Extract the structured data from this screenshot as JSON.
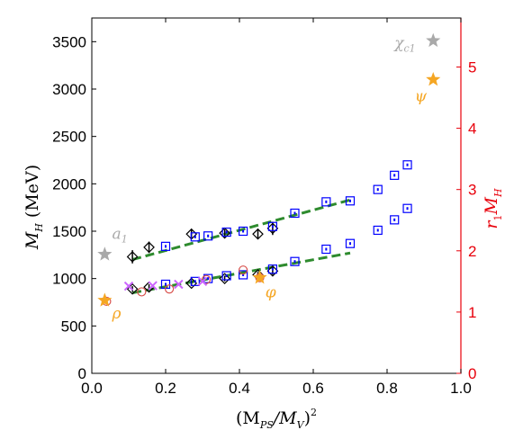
{
  "chart_data": {
    "type": "scatter",
    "x_axis": {
      "label_main": "(M",
      "label_sub1": "PS",
      "label_mid": "/M",
      "label_sub2": "V",
      "label_end": ")",
      "label_sup": "2",
      "range": [
        0,
        1.0
      ],
      "ticks": [
        0,
        0.2,
        0.4,
        0.6,
        0.8,
        1.0
      ],
      "tick_labels": [
        "0.0",
        "0.2",
        "0.4",
        "0.6",
        "0.8",
        "1.0"
      ]
    },
    "y_left": {
      "label_main": "M",
      "label_sub": "H",
      "label_unit": " (MeV)",
      "range": [
        0,
        3750
      ],
      "ticks": [
        0,
        500,
        1000,
        1500,
        2000,
        2500,
        3000,
        3500
      ],
      "tick_labels": [
        "0",
        "500",
        "1000",
        "1500",
        "2000",
        "2500",
        "3000",
        "3500"
      ],
      "color": "#000000"
    },
    "y_right": {
      "label_pre": "r",
      "label_sub1": "1",
      "label_mid": "M",
      "label_sub2": "H",
      "range": [
        0,
        5.8
      ],
      "ticks": [
        0,
        1,
        2,
        3,
        4,
        5
      ],
      "tick_labels": [
        "0",
        "1",
        "2",
        "3",
        "4",
        "5"
      ],
      "color": "#e8000b"
    },
    "grid": false,
    "series": [
      {
        "marker": "diamond",
        "color": "#000000",
        "points": [
          [
            0.11,
            1230
          ],
          [
            0.155,
            1330
          ],
          [
            0.27,
            1470
          ],
          [
            0.36,
            1480
          ],
          [
            0.45,
            1470
          ],
          [
            0.49,
            1530
          ],
          [
            0.11,
            890
          ],
          [
            0.155,
            910
          ],
          [
            0.27,
            950
          ],
          [
            0.36,
            1000
          ],
          [
            0.45,
            1040
          ],
          [
            0.49,
            1080
          ]
        ],
        "errors": [
          70,
          60,
          50,
          40,
          50,
          70,
          30,
          30,
          30,
          30,
          30,
          40
        ]
      },
      {
        "marker": "square",
        "color": "#0000ff",
        "points": [
          [
            0.2,
            1340
          ],
          [
            0.28,
            1440
          ],
          [
            0.315,
            1450
          ],
          [
            0.365,
            1490
          ],
          [
            0.41,
            1500
          ],
          [
            0.49,
            1550
          ],
          [
            0.55,
            1690
          ],
          [
            0.635,
            1810
          ],
          [
            0.7,
            1820
          ],
          [
            0.775,
            1940
          ],
          [
            0.82,
            2090
          ],
          [
            0.855,
            2200
          ],
          [
            0.2,
            940
          ],
          [
            0.28,
            970
          ],
          [
            0.315,
            1000
          ],
          [
            0.365,
            1030
          ],
          [
            0.41,
            1040
          ],
          [
            0.49,
            1100
          ],
          [
            0.55,
            1180
          ],
          [
            0.635,
            1310
          ],
          [
            0.7,
            1370
          ],
          [
            0.775,
            1510
          ],
          [
            0.82,
            1620
          ],
          [
            0.855,
            1740
          ]
        ]
      },
      {
        "marker": "circle",
        "color": "#d9534f",
        "points": [
          [
            0.04,
            760
          ],
          [
            0.135,
            860
          ],
          [
            0.21,
            890
          ],
          [
            0.31,
            990
          ],
          [
            0.41,
            1090
          ],
          [
            0.455,
            1010
          ]
        ]
      },
      {
        "marker": "cross",
        "color": "#cc66ff",
        "points": [
          [
            0.1,
            920
          ],
          [
            0.165,
            925
          ],
          [
            0.235,
            940
          ],
          [
            0.3,
            970
          ]
        ]
      }
    ],
    "fit_lines": [
      {
        "color": "#2e8b2e",
        "from": [
          0.11,
          1200
        ],
        "to": [
          0.7,
          1830
        ]
      },
      {
        "color": "#2e8b2e",
        "from": [
          0.11,
          850
        ],
        "to": [
          0.7,
          1270
        ]
      }
    ],
    "annotations": [
      {
        "kind": "star",
        "color": "#a9a9a9",
        "x": 0.035,
        "y": 1255,
        "label_main": "a",
        "label_sub": "1",
        "lx": 0.055,
        "ly": 1420
      },
      {
        "kind": "star",
        "color": "#f5a623",
        "x": 0.035,
        "y": 770,
        "label_main": "ρ",
        "label_sub": "",
        "lx": 0.055,
        "ly": 580
      },
      {
        "kind": "star",
        "color": "#f5a623",
        "x": 0.455,
        "y": 1010,
        "label_main": "φ",
        "label_sub": "",
        "lx": 0.47,
        "ly": 800
      },
      {
        "kind": "star",
        "color": "#a9a9a9",
        "x": 0.925,
        "y": 3510,
        "label_main": "χ",
        "label_sub": "c1",
        "lx": 0.82,
        "ly": 3430
      },
      {
        "kind": "star",
        "color": "#f5a623",
        "x": 0.925,
        "y": 3100,
        "label_main": "ψ",
        "label_sub": "",
        "lx": 0.875,
        "ly": 2870
      }
    ]
  }
}
